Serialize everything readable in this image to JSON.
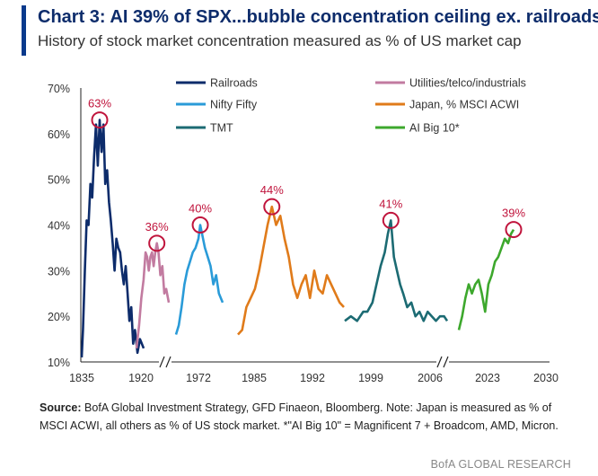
{
  "header": {
    "title": "Chart 3: AI 39% of SPX...bubble concentration ceiling ex. railroads",
    "subtitle": "History of stock market concentration measured as % of US market cap"
  },
  "footer": {
    "source_label": "Source:",
    "source_text": "BofA Global Investment Strategy, GFD Finaeon, Bloomberg. Note: Japan is measured as % of MSCI ACWI, all others as % of US stock market. *\"AI Big 10\" = Magnificent 7 + Broadcom, AMD, Micron.",
    "credit": "BofA GLOBAL RESEARCH"
  },
  "chart_data": {
    "type": "line",
    "title": "Chart 3: AI 39% of SPX...bubble concentration ceiling ex. railroads",
    "subtitle": "History of stock market concentration measured as % of US market cap",
    "y_axis": {
      "min": 10,
      "max": 70,
      "ticks": [
        "10%",
        "20%",
        "30%",
        "40%",
        "50%",
        "60%",
        "70%"
      ]
    },
    "x_axis": {
      "ticks": [
        "1835",
        "1920",
        "1972",
        "1985",
        "1992",
        "1999",
        "2006",
        "2023",
        "2030"
      ],
      "broken": true,
      "break_marks": 2
    },
    "grid": false,
    "legend": {
      "placement": "top",
      "entries": [
        "Railroads",
        "Utilities/telco/industrials",
        "Nifty Fifty",
        "Japan, % MSCI ACWI",
        "TMT",
        "AI Big 10*"
      ]
    },
    "series": [
      {
        "name": "Railroads",
        "color": "#0d2c6b",
        "points": [
          [
            0.0,
            11
          ],
          [
            0.02,
            17
          ],
          [
            0.05,
            30
          ],
          [
            0.08,
            41
          ],
          [
            0.11,
            40
          ],
          [
            0.14,
            49
          ],
          [
            0.17,
            46
          ],
          [
            0.2,
            55
          ],
          [
            0.23,
            62
          ],
          [
            0.26,
            53
          ],
          [
            0.29,
            63
          ],
          [
            0.32,
            56
          ],
          [
            0.35,
            62
          ],
          [
            0.38,
            49
          ],
          [
            0.41,
            52
          ],
          [
            0.44,
            45
          ],
          [
            0.47,
            41
          ],
          [
            0.5,
            36
          ],
          [
            0.53,
            30
          ],
          [
            0.56,
            37
          ],
          [
            0.59,
            35
          ],
          [
            0.62,
            34
          ],
          [
            0.65,
            30
          ],
          [
            0.68,
            27
          ],
          [
            0.71,
            31
          ],
          [
            0.74,
            25
          ],
          [
            0.77,
            19
          ],
          [
            0.8,
            22
          ],
          [
            0.83,
            14
          ],
          [
            0.86,
            17
          ],
          [
            0.9,
            12
          ],
          [
            0.94,
            15
          ],
          [
            1.0,
            13
          ]
        ]
      },
      {
        "name": "Utilities/telco/industrials",
        "color": "#c27ba0",
        "points": [
          [
            0.0,
            13
          ],
          [
            0.08,
            18
          ],
          [
            0.15,
            24
          ],
          [
            0.22,
            28
          ],
          [
            0.28,
            34
          ],
          [
            0.33,
            33
          ],
          [
            0.38,
            30
          ],
          [
            0.43,
            33
          ],
          [
            0.48,
            34
          ],
          [
            0.53,
            31
          ],
          [
            0.58,
            34
          ],
          [
            0.63,
            36
          ],
          [
            0.68,
            34
          ],
          [
            0.74,
            29
          ],
          [
            0.8,
            31
          ],
          [
            0.86,
            25
          ],
          [
            0.92,
            26
          ],
          [
            1.0,
            23
          ]
        ]
      },
      {
        "name": "Nifty Fifty",
        "color": "#2a9bd8",
        "points": [
          [
            0.0,
            16
          ],
          [
            0.06,
            18
          ],
          [
            0.12,
            22
          ],
          [
            0.18,
            27
          ],
          [
            0.24,
            30
          ],
          [
            0.3,
            32
          ],
          [
            0.36,
            34
          ],
          [
            0.42,
            35
          ],
          [
            0.48,
            37
          ],
          [
            0.52,
            40
          ],
          [
            0.56,
            38
          ],
          [
            0.62,
            35
          ],
          [
            0.68,
            33
          ],
          [
            0.74,
            31
          ],
          [
            0.8,
            27
          ],
          [
            0.86,
            29
          ],
          [
            0.92,
            25
          ],
          [
            1.0,
            23
          ]
        ]
      },
      {
        "name": "Japan, % MSCI ACWI",
        "color": "#e07b1a",
        "points": [
          [
            0.0,
            16
          ],
          [
            0.04,
            17
          ],
          [
            0.08,
            22
          ],
          [
            0.12,
            24
          ],
          [
            0.16,
            26
          ],
          [
            0.2,
            30
          ],
          [
            0.24,
            35
          ],
          [
            0.28,
            40
          ],
          [
            0.32,
            44
          ],
          [
            0.36,
            40
          ],
          [
            0.4,
            42
          ],
          [
            0.44,
            37
          ],
          [
            0.48,
            33
          ],
          [
            0.52,
            27
          ],
          [
            0.56,
            24
          ],
          [
            0.6,
            27
          ],
          [
            0.64,
            29
          ],
          [
            0.68,
            24
          ],
          [
            0.72,
            30
          ],
          [
            0.76,
            26
          ],
          [
            0.8,
            25
          ],
          [
            0.84,
            29
          ],
          [
            0.88,
            27
          ],
          [
            0.92,
            25
          ],
          [
            0.96,
            23
          ],
          [
            1.0,
            22
          ]
        ]
      },
      {
        "name": "TMT",
        "color": "#1c6b73",
        "points": [
          [
            0.0,
            19
          ],
          [
            0.06,
            20
          ],
          [
            0.12,
            19
          ],
          [
            0.18,
            21
          ],
          [
            0.22,
            21
          ],
          [
            0.27,
            23
          ],
          [
            0.31,
            27
          ],
          [
            0.35,
            31
          ],
          [
            0.39,
            34
          ],
          [
            0.42,
            38
          ],
          [
            0.45,
            41
          ],
          [
            0.48,
            33
          ],
          [
            0.51,
            30
          ],
          [
            0.54,
            27
          ],
          [
            0.57,
            25
          ],
          [
            0.61,
            22
          ],
          [
            0.65,
            23
          ],
          [
            0.69,
            20
          ],
          [
            0.73,
            21
          ],
          [
            0.77,
            19
          ],
          [
            0.81,
            21
          ],
          [
            0.85,
            20
          ],
          [
            0.89,
            19
          ],
          [
            0.93,
            20
          ],
          [
            0.97,
            20
          ],
          [
            1.0,
            19
          ]
        ]
      },
      {
        "name": "AI Big 10*",
        "color": "#3da82d",
        "points": [
          [
            0.0,
            17
          ],
          [
            0.06,
            20
          ],
          [
            0.12,
            24
          ],
          [
            0.18,
            27
          ],
          [
            0.24,
            25
          ],
          [
            0.3,
            27
          ],
          [
            0.36,
            28
          ],
          [
            0.42,
            25
          ],
          [
            0.48,
            21
          ],
          [
            0.54,
            27
          ],
          [
            0.6,
            29
          ],
          [
            0.66,
            32
          ],
          [
            0.72,
            33
          ],
          [
            0.78,
            35
          ],
          [
            0.84,
            37
          ],
          [
            0.9,
            36
          ],
          [
            0.95,
            38
          ],
          [
            1.0,
            39
          ]
        ]
      }
    ],
    "annotations": [
      {
        "series": "Railroads",
        "label": "63%",
        "value": 63
      },
      {
        "series": "Utilities/telco/industrials",
        "label": "36%",
        "value": 36
      },
      {
        "series": "Nifty Fifty",
        "label": "40%",
        "value": 40
      },
      {
        "series": "Japan, % MSCI ACWI",
        "label": "44%",
        "value": 44
      },
      {
        "series": "TMT",
        "label": "41%",
        "value": 41
      },
      {
        "series": "AI Big 10*",
        "label": "39%",
        "value": 39
      }
    ],
    "annotation_color": "#c0143c"
  }
}
